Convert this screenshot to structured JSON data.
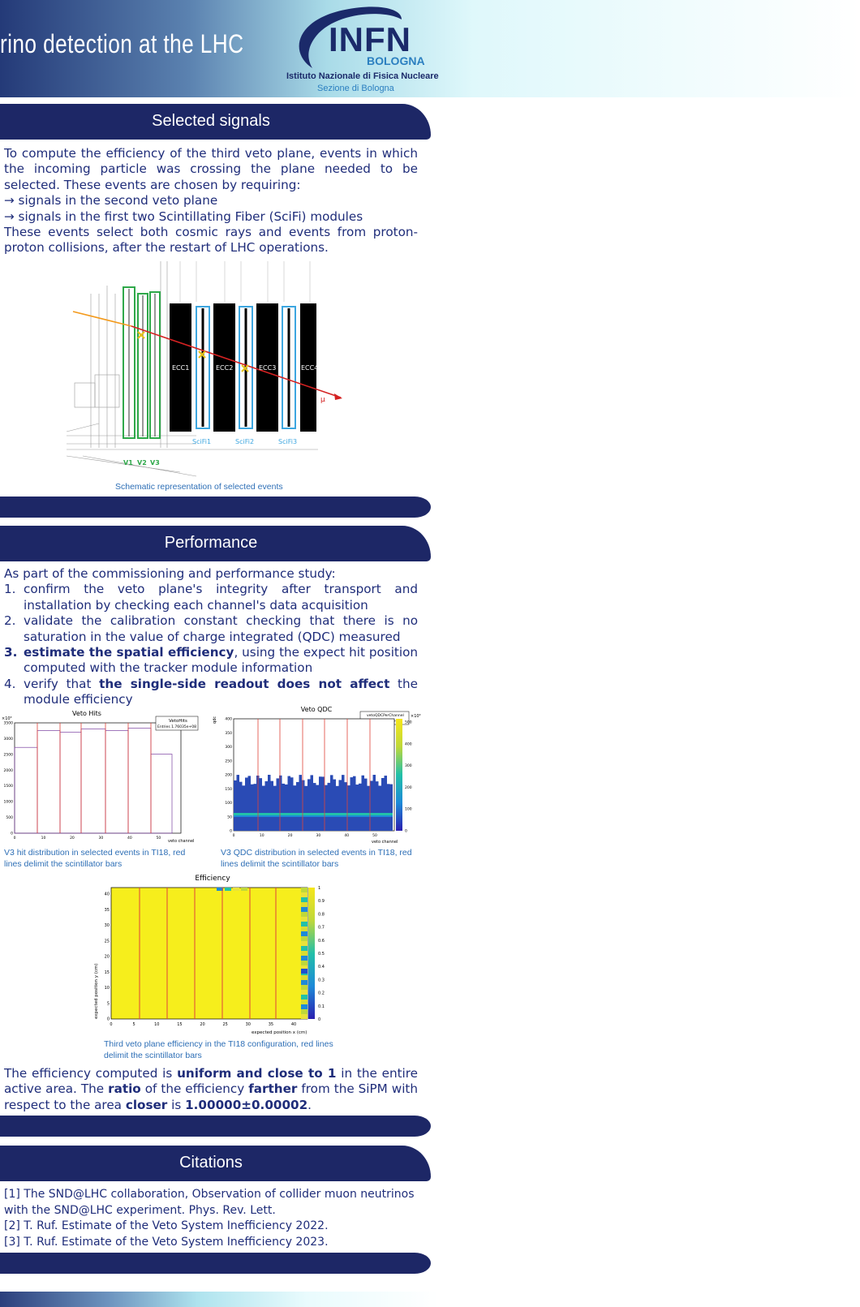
{
  "header": {
    "title": "rino detection at the LHC",
    "logo": {
      "main": "INFN",
      "city": "BOLOGNA",
      "institute": "Istituto Nazionale di Fisica Nucleare",
      "section": "Sezione di Bologna"
    }
  },
  "selected_signals": {
    "heading": "Selected signals",
    "intro": "To compute the efficiency of the third veto plane, events in which the incoming particle was crossing the plane needed to be selected. These events are chosen by requiring:",
    "req1": "→ signals in the second veto plane",
    "req2": "→ signals in the first two Scintillating Fiber (SciFi) modules",
    "outro": "These events select both cosmic rays and events from proton-proton collisions, after the restart of LHC operations.",
    "schematic": {
      "ecc_labels": [
        "ECC1",
        "ECC2",
        "ECC3",
        "ECC4"
      ],
      "scifi_labels": [
        "SciFi1",
        "SciFi2",
        "SciFi3"
      ],
      "veto_labels": [
        "V1",
        "V2",
        "V3"
      ],
      "muon": "μ"
    },
    "caption": "Schematic representation of selected events"
  },
  "performance": {
    "heading": "Performance",
    "intro": "As part of the commissioning and performance study:",
    "items": [
      {
        "num": "1.",
        "text": "confirm the veto plane's integrity after transport and installation by checking each channel's data acquisition"
      },
      {
        "num": "2.",
        "text": "validate the calibration constant checking that there is no saturation in the value of charge integrated (QDC) measured"
      },
      {
        "num": "3.",
        "bold": "estimate the spatial efficiency",
        "text": ", using the expect hit position computed with the tracker module information"
      },
      {
        "num": "4.",
        "pre": "verify that ",
        "bold": "the single-side readout does not affect",
        "text": " the module efficiency"
      }
    ],
    "hits_plot": {
      "title": "Veto Hits",
      "stats_name": "VetoHits",
      "stats_entries": "Entries   1.76035e+08",
      "y_exp": "×10³",
      "xlabel": "veto channel",
      "yticks": [
        "3500",
        "3000",
        "2500",
        "2000",
        "1500",
        "1000",
        "500",
        "0"
      ],
      "xticks": [
        "0",
        "10",
        "20",
        "30",
        "40",
        "50"
      ],
      "caption": "V3 hit distribution in selected events in TI18, red lines delimit the scintillator bars"
    },
    "qdc_plot": {
      "title": "Veto QDC",
      "stats_name": "vetoQDCPerChannel",
      "stats_entries": "Entries   1.75633e+08",
      "ylabel": "qdc",
      "xlabel": "veto channel",
      "z_exp": "×10³",
      "yticks": [
        "400",
        "350",
        "300",
        "250",
        "200",
        "150",
        "100",
        "50",
        "0"
      ],
      "xticks": [
        "0",
        "10",
        "20",
        "30",
        "40",
        "50"
      ],
      "zticks": [
        "500",
        "400",
        "300",
        "200",
        "100",
        "0"
      ],
      "caption": "V3 QDC distribution in selected events in TI18, red lines delimit the scintillator bars"
    },
    "eff_plot": {
      "title": "Efficiency",
      "ylabel": "expected position y (cm)",
      "xlabel": "expected position x (cm)",
      "yticks": [
        "40",
        "35",
        "30",
        "25",
        "20",
        "15",
        "10",
        "5",
        "0"
      ],
      "xticks": [
        "0",
        "5",
        "10",
        "15",
        "20",
        "25",
        "30",
        "35",
        "40"
      ],
      "zticks": [
        "1",
        "0.9",
        "0.8",
        "0.7",
        "0.6",
        "0.5",
        "0.4",
        "0.3",
        "0.2",
        "0.1",
        "0"
      ],
      "caption": "Third veto plane efficiency in the TI18 configuration, red lines delimit the scintillator bars"
    },
    "result": {
      "p1": "The efficiency computed is ",
      "b1": "uniform and close to 1",
      "p2": " in the entire active area. The ",
      "b2": "ratio",
      "p3": " of the efficiency ",
      "b3": "farther",
      "p4": " from the SiPM with respect to the area ",
      "b4": "closer",
      "p5": " is ",
      "b5": "1.00000±0.00002",
      "p6": "."
    }
  },
  "citations": {
    "heading": "Citations",
    "items": [
      "[1] The SND@LHC collaboration, Observation of collider muon neutrinos with the SND@LHC experiment. Phys. Rev. Lett.",
      "[2] T. Ruf. Estimate of the Veto System Inefficiency 2022.",
      "[3] T. Ruf. Estimate of the Veto System Inefficiency 2023."
    ]
  },
  "colors": {
    "navy": "#1d2766",
    "text": "#1f2d7a",
    "caption": "#2e6fb6",
    "accent_red": "#e0443a",
    "scifi_blue": "#3ca6e0",
    "veto_green": "#2fa84a"
  }
}
